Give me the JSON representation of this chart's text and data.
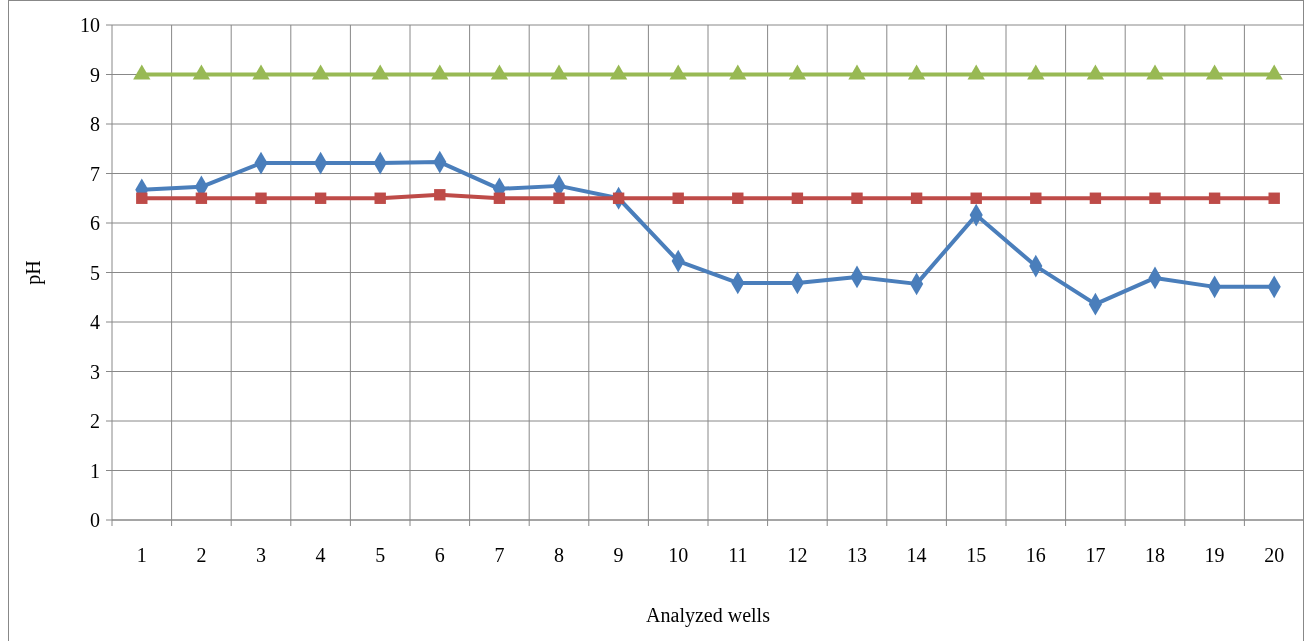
{
  "chart_data": {
    "type": "line",
    "xlabel": "Analyzed wells",
    "ylabel": "pH",
    "categories": [
      "1",
      "2",
      "3",
      "4",
      "5",
      "6",
      "7",
      "8",
      "9",
      "10",
      "11",
      "12",
      "13",
      "14",
      "15",
      "16",
      "17",
      "18",
      "19",
      "20"
    ],
    "ylim": [
      0,
      10
    ],
    "yticks": [
      0,
      1,
      2,
      3,
      4,
      5,
      6,
      7,
      8,
      9,
      10
    ],
    "grid": true,
    "series": [
      {
        "color": "#4a7ebb",
        "marker": "diamond",
        "values": [
          6.67,
          6.73,
          7.21,
          7.21,
          7.21,
          7.23,
          6.69,
          6.75,
          6.5,
          5.23,
          4.79,
          4.79,
          4.91,
          4.77,
          6.16,
          5.13,
          4.36,
          4.89,
          4.71,
          4.71
        ]
      },
      {
        "color": "#be4b48",
        "marker": "square",
        "values": [
          6.5,
          6.5,
          6.5,
          6.5,
          6.5,
          6.57,
          6.5,
          6.5,
          6.5,
          6.5,
          6.5,
          6.5,
          6.5,
          6.5,
          6.5,
          6.5,
          6.5,
          6.5,
          6.5,
          6.5
        ]
      },
      {
        "color": "#98b954",
        "marker": "triangle",
        "values": [
          9,
          9,
          9,
          9,
          9,
          9,
          9,
          9,
          9,
          9,
          9,
          9,
          9,
          9,
          9,
          9,
          9,
          9,
          9,
          9
        ]
      }
    ]
  }
}
